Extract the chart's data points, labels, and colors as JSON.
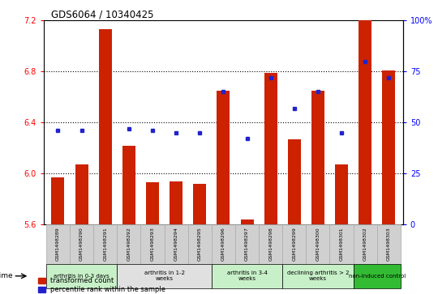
{
  "title": "GDS6064 / 10340425",
  "samples": [
    "GSM1498289",
    "GSM1498290",
    "GSM1498291",
    "GSM1498292",
    "GSM1498293",
    "GSM1498294",
    "GSM1498295",
    "GSM1498296",
    "GSM1498297",
    "GSM1498298",
    "GSM1498299",
    "GSM1498300",
    "GSM1498301",
    "GSM1498302",
    "GSM1498303"
  ],
  "red_values": [
    5.97,
    6.07,
    7.13,
    6.22,
    5.93,
    5.94,
    5.92,
    6.65,
    5.64,
    6.79,
    6.27,
    6.65,
    6.07,
    7.2,
    6.81
  ],
  "blue_values": [
    46,
    46,
    null,
    47,
    46,
    45,
    45,
    65,
    42,
    72,
    57,
    65,
    45,
    80,
    72
  ],
  "groups": [
    {
      "label": "arthritis in 0-3 days",
      "start": 0,
      "end": 3,
      "color": "#c8f0c8"
    },
    {
      "label": "arthritis in 1-2\nweeks",
      "start": 3,
      "end": 7,
      "color": "#e0e0e0"
    },
    {
      "label": "arthritis in 3-4\nweeks",
      "start": 7,
      "end": 10,
      "color": "#c8f0c8"
    },
    {
      "label": "declining arthritis > 2\nweeks",
      "start": 10,
      "end": 13,
      "color": "#c8f0c8"
    },
    {
      "label": "non-induced control",
      "start": 13,
      "end": 15,
      "color": "#33bb33"
    }
  ],
  "ylim_left": [
    5.6,
    7.2
  ],
  "ylim_right": [
    0,
    100
  ],
  "yticks_left": [
    5.6,
    6.0,
    6.4,
    6.8,
    7.2
  ],
  "yticks_right": [
    0,
    25,
    50,
    75,
    100
  ],
  "yticks_right_labels": [
    "0",
    "25",
    "50",
    "75",
    "100%"
  ],
  "bar_color": "#cc2200",
  "dot_color": "#2222cc",
  "bar_bottom": 5.6,
  "background_color": "#ffffff",
  "sample_box_color": "#d0d0d0",
  "sample_box_edge": "#aaaaaa"
}
